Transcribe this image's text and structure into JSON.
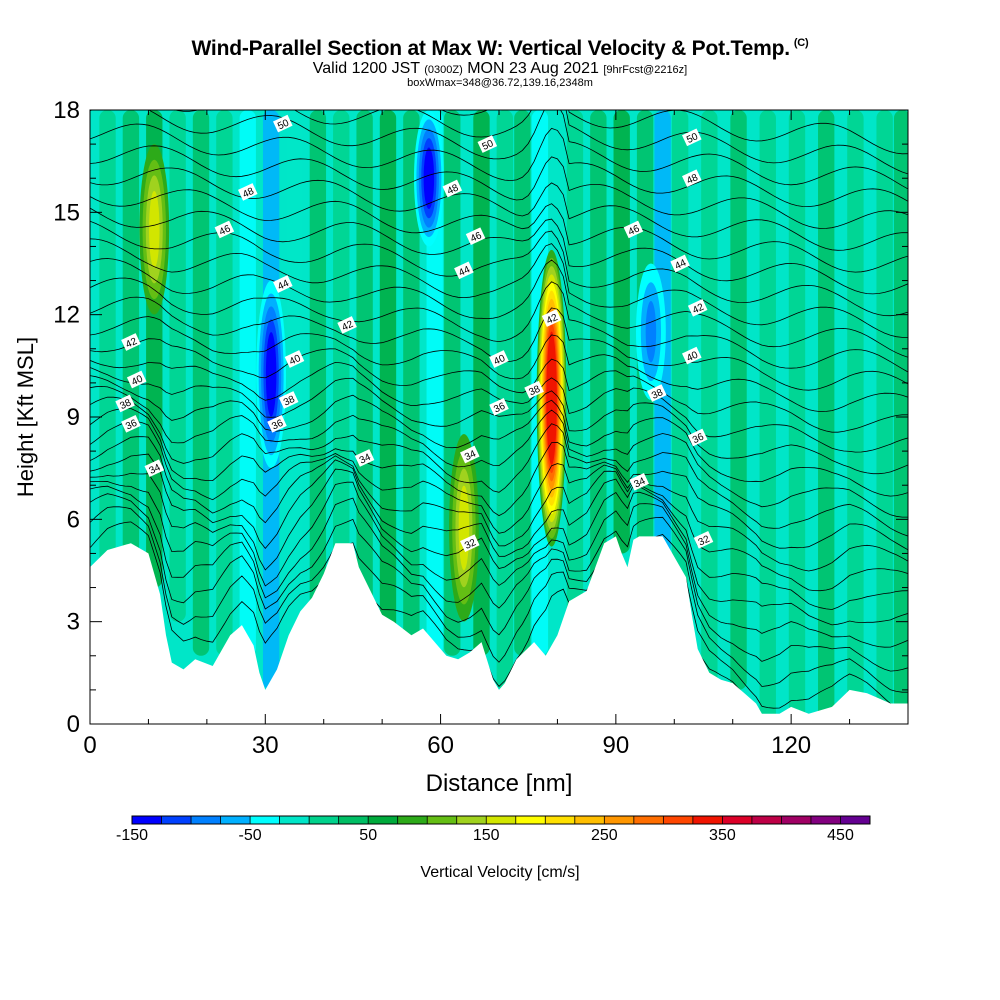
{
  "header": {
    "title": "Wind-Parallel Section at Max W: Vertical Velocity & Pot.Temp.",
    "copyright": "(C)",
    "subtitle_a": "Valid 1200 JST",
    "subtitle_b": "(0300Z)",
    "subtitle_c": "MON 23 Aug 2021",
    "subtitle_d": "[9hrFcst@2216z]",
    "subnote": "boxWmax=348@36.72,139.16,2348m"
  },
  "chart_data": {
    "type": "heatmap",
    "title": "Wind-Parallel Section at Max W: Vertical Velocity & Pot.Temp.",
    "xlabel": "Distance [nm]",
    "ylabel": "Height [Kft MSL]",
    "xlim": [
      0,
      140
    ],
    "ylim": [
      0,
      18
    ],
    "xticks": [
      0,
      30,
      60,
      90,
      120
    ],
    "yticks": [
      0,
      3,
      6,
      9,
      12,
      15,
      18
    ],
    "grid": false,
    "colorbar": {
      "label": "Vertical Velocity [cm/s]",
      "tick_labels": [
        "-150",
        "-50",
        "50",
        "150",
        "250",
        "350",
        "450"
      ],
      "colors": [
        "#0000ff",
        "#0040ff",
        "#0080ff",
        "#00b0ff",
        "#00ffff",
        "#00e6c8",
        "#00d28c",
        "#00be64",
        "#00aa3c",
        "#2daa19",
        "#64be14",
        "#a0d21e",
        "#d2e600",
        "#ffff00",
        "#ffe000",
        "#ffbe00",
        "#ff9600",
        "#ff6e00",
        "#ff4600",
        "#f01400",
        "#dc0028",
        "#be0046",
        "#a00064",
        "#82007f",
        "#640091"
      ]
    },
    "terrain_kft": [
      [
        0,
        4.6
      ],
      [
        3,
        5.1
      ],
      [
        7,
        5.3
      ],
      [
        10,
        5.0
      ],
      [
        12,
        3.8
      ],
      [
        13,
        2.6
      ],
      [
        14,
        1.8
      ],
      [
        16,
        1.6
      ],
      [
        18,
        1.9
      ],
      [
        21,
        1.7
      ],
      [
        24,
        2.6
      ],
      [
        26,
        2.9
      ],
      [
        28,
        2.3
      ],
      [
        29,
        1.5
      ],
      [
        30,
        1.0
      ],
      [
        32,
        1.6
      ],
      [
        34,
        2.6
      ],
      [
        36,
        3.3
      ],
      [
        38,
        3.7
      ],
      [
        40,
        4.4
      ],
      [
        42,
        5.3
      ],
      [
        45,
        5.3
      ],
      [
        46,
        4.6
      ],
      [
        48,
        3.9
      ],
      [
        50,
        3.2
      ],
      [
        52,
        3.0
      ],
      [
        55,
        2.6
      ],
      [
        57,
        2.8
      ],
      [
        59,
        2.4
      ],
      [
        61,
        2.0
      ],
      [
        63,
        1.9
      ],
      [
        65,
        2.1
      ],
      [
        67,
        2.4
      ],
      [
        69,
        1.3
      ],
      [
        70,
        1.0
      ],
      [
        71,
        1.2
      ],
      [
        73,
        1.9
      ],
      [
        76,
        2.4
      ],
      [
        78,
        2.0
      ],
      [
        80,
        2.6
      ],
      [
        82,
        3.6
      ],
      [
        85,
        3.9
      ],
      [
        88,
        5.3
      ],
      [
        90,
        5.5
      ],
      [
        91,
        5.0
      ],
      [
        92,
        4.6
      ],
      [
        93,
        5.4
      ],
      [
        94,
        5.5
      ],
      [
        98,
        5.5
      ],
      [
        100,
        4.9
      ],
      [
        102,
        4.3
      ],
      [
        103,
        3.2
      ],
      [
        104,
        2.2
      ],
      [
        106,
        1.5
      ],
      [
        108,
        1.3
      ],
      [
        110,
        1.2
      ],
      [
        112,
        0.9
      ],
      [
        114,
        0.6
      ],
      [
        115,
        0.3
      ],
      [
        118,
        0.3
      ],
      [
        120,
        0.5
      ],
      [
        123,
        0.3
      ],
      [
        127,
        0.5
      ],
      [
        130,
        1.0
      ],
      [
        133,
        0.9
      ],
      [
        137,
        0.6
      ],
      [
        140,
        0.6
      ]
    ],
    "w_features": [
      {
        "x": 79,
        "z0": 5.2,
        "z1": 13.9,
        "peak": 348
      },
      {
        "x": 64,
        "z0": 3.0,
        "z1": 8.5,
        "peak": 150
      },
      {
        "x": 11,
        "z0": 12.0,
        "z1": 17.0,
        "peak": 150
      },
      {
        "x": 31,
        "z0": 7.5,
        "z1": 13.0,
        "peak": -150
      },
      {
        "x": 58,
        "z0": 14.0,
        "z1": 18.0,
        "peak": -150
      },
      {
        "x": 96,
        "z0": 9.5,
        "z1": 13.5,
        "peak": -120
      }
    ],
    "theta_labels": [
      {
        "x": 33,
        "z": 17.6,
        "text": "50"
      },
      {
        "x": 68,
        "z": 17.0,
        "text": "50"
      },
      {
        "x": 103,
        "z": 17.2,
        "text": "50"
      },
      {
        "x": 27,
        "z": 15.6,
        "text": "48"
      },
      {
        "x": 62,
        "z": 15.7,
        "text": "48"
      },
      {
        "x": 103,
        "z": 16.0,
        "text": "48"
      },
      {
        "x": 23,
        "z": 14.5,
        "text": "46"
      },
      {
        "x": 66,
        "z": 14.3,
        "text": "46"
      },
      {
        "x": 93,
        "z": 14.5,
        "text": "46"
      },
      {
        "x": 33,
        "z": 12.9,
        "text": "44"
      },
      {
        "x": 64,
        "z": 13.3,
        "text": "44"
      },
      {
        "x": 101,
        "z": 13.5,
        "text": "44"
      },
      {
        "x": 7,
        "z": 11.2,
        "text": "42"
      },
      {
        "x": 44,
        "z": 11.7,
        "text": "42"
      },
      {
        "x": 79,
        "z": 11.9,
        "text": "42"
      },
      {
        "x": 104,
        "z": 12.2,
        "text": "42"
      },
      {
        "x": 8,
        "z": 10.1,
        "text": "40"
      },
      {
        "x": 35,
        "z": 10.7,
        "text": "40"
      },
      {
        "x": 70,
        "z": 10.7,
        "text": "40"
      },
      {
        "x": 103,
        "z": 10.8,
        "text": "40"
      },
      {
        "x": 6,
        "z": 9.4,
        "text": "38"
      },
      {
        "x": 34,
        "z": 9.5,
        "text": "38"
      },
      {
        "x": 76,
        "z": 9.8,
        "text": "38"
      },
      {
        "x": 97,
        "z": 9.7,
        "text": "38"
      },
      {
        "x": 7,
        "z": 8.8,
        "text": "36"
      },
      {
        "x": 32,
        "z": 8.8,
        "text": "36"
      },
      {
        "x": 70,
        "z": 9.3,
        "text": "36"
      },
      {
        "x": 104,
        "z": 8.4,
        "text": "36"
      },
      {
        "x": 11,
        "z": 7.5,
        "text": "34"
      },
      {
        "x": 47,
        "z": 7.8,
        "text": "34"
      },
      {
        "x": 65,
        "z": 7.9,
        "text": "34"
      },
      {
        "x": 94,
        "z": 7.1,
        "text": "34"
      },
      {
        "x": 65,
        "z": 5.3,
        "text": "32"
      },
      {
        "x": 105,
        "z": 5.4,
        "text": "32"
      }
    ]
  }
}
